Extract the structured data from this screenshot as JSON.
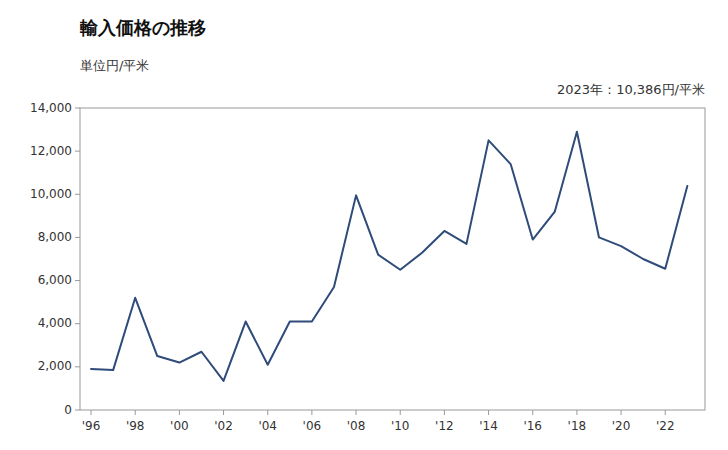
{
  "chart_data": {
    "type": "line",
    "title": "輸入価格の推移",
    "ylabel": "単位円/平米",
    "annotation": "2023年：10,386円/平米",
    "x": [
      1996,
      1997,
      1998,
      1999,
      2000,
      2001,
      2002,
      2003,
      2004,
      2005,
      2006,
      2007,
      2008,
      2009,
      2010,
      2011,
      2012,
      2013,
      2014,
      2015,
      2016,
      2017,
      2018,
      2019,
      2020,
      2021,
      2022,
      2023
    ],
    "values": [
      1900,
      1850,
      5200,
      2500,
      2200,
      2700,
      1350,
      4100,
      2100,
      4100,
      4100,
      5700,
      9950,
      7200,
      6500,
      7300,
      8300,
      7700,
      12500,
      11400,
      7900,
      9200,
      12900,
      8000,
      7600,
      7000,
      6550,
      10386
    ],
    "color": "#2e4b7a",
    "xlim": [
      1995.5,
      2023.8
    ],
    "xticks": [
      {
        "value": 1996,
        "label": "'96"
      },
      {
        "value": 1998,
        "label": "'98"
      },
      {
        "value": 2000,
        "label": "'00"
      },
      {
        "value": 2002,
        "label": "'02"
      },
      {
        "value": 2004,
        "label": "'04"
      },
      {
        "value": 2006,
        "label": "'06"
      },
      {
        "value": 2008,
        "label": "'08"
      },
      {
        "value": 2010,
        "label": "'10"
      },
      {
        "value": 2012,
        "label": "'12"
      },
      {
        "value": 2014,
        "label": "'14"
      },
      {
        "value": 2016,
        "label": "'16"
      },
      {
        "value": 2018,
        "label": "'18"
      },
      {
        "value": 2020,
        "label": "'20"
      },
      {
        "value": 2022,
        "label": "'22"
      }
    ],
    "ylim": [
      0,
      14000
    ],
    "yticks": [
      0,
      {
        "value": 2000,
        "label": "2,000"
      },
      {
        "value": 4000,
        "label": "4,000"
      },
      {
        "value": 6000,
        "label": "6,000"
      },
      {
        "value": 8000,
        "label": "8,000"
      },
      {
        "value": 10000,
        "label": "10,000"
      },
      {
        "value": 12000,
        "label": "12,000"
      },
      {
        "value": 14000,
        "label": "14,000"
      }
    ],
    "grid": false
  }
}
